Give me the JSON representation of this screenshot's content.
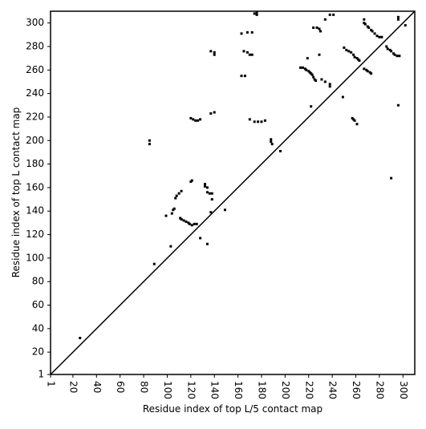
{
  "chart_data": {
    "type": "scatter",
    "xlabel": "Residue index of top L/5 contact map",
    "ylabel": "Residue index of top L contact map",
    "xlim": [
      1,
      310
    ],
    "ylim": [
      1,
      310
    ],
    "xticks": [
      1,
      20,
      40,
      60,
      80,
      100,
      120,
      140,
      160,
      180,
      200,
      220,
      240,
      260,
      280,
      300
    ],
    "yticks": [
      1,
      20,
      40,
      60,
      80,
      100,
      120,
      140,
      160,
      180,
      200,
      220,
      240,
      260,
      280,
      300
    ],
    "color": "#000000",
    "x": [
      26,
      89,
      85,
      85,
      99,
      103,
      104,
      105,
      106,
      107,
      108,
      110,
      112,
      111,
      112,
      114,
      116,
      118,
      119,
      121,
      123,
      125,
      120,
      121,
      120,
      122,
      124,
      126,
      128,
      128,
      132,
      132,
      134,
      134,
      136,
      138,
      138,
      134,
      137,
      140,
      137,
      137,
      140,
      140,
      149,
      163,
      166,
      163,
      168,
      172,
      165,
      168,
      170,
      172,
      170,
      174,
      177,
      180,
      183,
      174,
      176,
      176,
      188,
      188,
      189,
      196,
      219,
      213,
      215,
      217,
      218,
      220,
      221,
      222,
      223,
      224,
      225,
      226,
      224,
      227,
      229,
      230,
      229,
      222,
      234,
      238,
      241,
      231,
      234,
      238,
      238,
      250,
      252,
      254,
      256,
      258,
      259,
      261,
      262,
      263,
      249,
      257,
      258,
      259,
      261,
      267,
      267,
      268,
      270,
      271,
      273,
      274,
      276,
      278,
      280,
      282,
      267,
      269,
      270,
      272,
      273,
      286,
      287,
      289,
      290,
      292,
      293,
      295,
      297,
      290,
      296,
      296,
      296,
      302
    ],
    "values": [
      32,
      95,
      197,
      200,
      136,
      110,
      138,
      141,
      142,
      151,
      153,
      155,
      157,
      134,
      133,
      132,
      131,
      130,
      129,
      128,
      129,
      129,
      165,
      166,
      219,
      218,
      217,
      217,
      218,
      117,
      161,
      163,
      160,
      156,
      155,
      150,
      155,
      112,
      223,
      224,
      139,
      276,
      275,
      273,
      141,
      255,
      255,
      291,
      292,
      292,
      276,
      275,
      273,
      273,
      218,
      216,
      216,
      216,
      217,
      308,
      307,
      309,
      201,
      199,
      197,
      191,
      270,
      262,
      262,
      261,
      260,
      259,
      258,
      257,
      256,
      254,
      252,
      251,
      296,
      296,
      295,
      293,
      273,
      229,
      303,
      307,
      307,
      252,
      250,
      248,
      246,
      279,
      277,
      276,
      275,
      273,
      271,
      270,
      269,
      268,
      237,
      219,
      218,
      217,
      214,
      303,
      300,
      299,
      297,
      296,
      294,
      293,
      291,
      289,
      288,
      288,
      261,
      260,
      259,
      258,
      257,
      280,
      278,
      277,
      276,
      274,
      273,
      272,
      272,
      168,
      305,
      303,
      230,
      298
    ]
  }
}
